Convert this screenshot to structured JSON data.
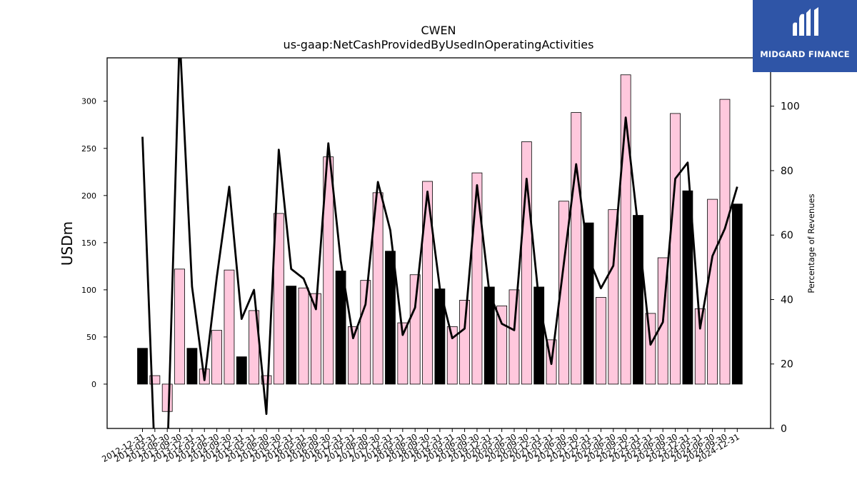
{
  "chart_data": {
    "type": "bar+line",
    "title": "CWEN",
    "subtitle": "us-gaap:NetCashProvidedByUsedInOperatingActivities",
    "ylabel": "USDm",
    "y2label": "Percentage of Revenues",
    "ylim": [
      -47,
      346
    ],
    "y2lim": [
      0,
      115
    ],
    "yticks": [
      0,
      50,
      100,
      150,
      200,
      250,
      300
    ],
    "y2ticks": [
      0,
      20,
      40,
      60,
      80,
      100
    ],
    "categories": [
      "2012-12-31",
      "2013-03-31",
      "2013-06-30",
      "2013-09-30",
      "2013-12-31",
      "2014-03-31",
      "2014-06-30",
      "2014-09-30",
      "2014-12-31",
      "2015-03-31",
      "2015-06-30",
      "2015-09-30",
      "2015-12-31",
      "2016-03-31",
      "2016-06-30",
      "2016-09-30",
      "2016-12-31",
      "2017-03-31",
      "2017-06-30",
      "2017-09-30",
      "2017-12-31",
      "2018-03-31",
      "2018-06-30",
      "2018-09-30",
      "2018-12-31",
      "2019-03-31",
      "2019-06-30",
      "2019-09-30",
      "2019-12-31",
      "2020-03-31",
      "2020-06-30",
      "2020-09-30",
      "2020-12-31",
      "2021-03-31",
      "2021-06-30",
      "2021-09-30",
      "2021-12-31",
      "2022-03-31",
      "2022-06-30",
      "2022-09-30",
      "2022-12-31",
      "2023-03-31",
      "2023-06-30",
      "2023-09-30",
      "2023-12-31",
      "2024-03-31",
      "2024-06-30",
      "2024-09-30",
      "2024-12-31"
    ],
    "series": [
      {
        "type": "bar",
        "values": [
          38,
          9,
          -29,
          122,
          38,
          16,
          57,
          121,
          29,
          78,
          9,
          181,
          104,
          102,
          96,
          241,
          120,
          61,
          110,
          203,
          141,
          65,
          116,
          215,
          101,
          61,
          89,
          224,
          103,
          83,
          100,
          257,
          103,
          47,
          194,
          288,
          171,
          92,
          185,
          328,
          179,
          75,
          134,
          287,
          205,
          80,
          196,
          302,
          191
        ],
        "annual": [
          true,
          false,
          false,
          false,
          true,
          false,
          false,
          false,
          true,
          false,
          false,
          false,
          true,
          false,
          false,
          false,
          true,
          false,
          false,
          false,
          true,
          false,
          false,
          false,
          true,
          false,
          false,
          false,
          true,
          false,
          false,
          false,
          true,
          false,
          false,
          false,
          true,
          false,
          false,
          false,
          true,
          false,
          false,
          false,
          true,
          false,
          false,
          false,
          true
        ],
        "colors": {
          "annual": "#000000",
          "quarter": "#ffc8dd",
          "edge": "#000000"
        }
      },
      {
        "type": "line",
        "axis": "right",
        "values": [
          90.5,
          -10,
          -10,
          122,
          44,
          15,
          47,
          75,
          34,
          43,
          4.5,
          86.5,
          49.5,
          46.5,
          37,
          88.5,
          52,
          28,
          38.5,
          76.5,
          61.5,
          29,
          37.5,
          73.5,
          43.5,
          28,
          31,
          75.5,
          42,
          32.5,
          30.5,
          77.5,
          39.5,
          20,
          51,
          82,
          53,
          43.5,
          50.5,
          96.5,
          62.5,
          26,
          33,
          77.5,
          82.5,
          31,
          53.5,
          62,
          75
        ],
        "color": "#000000"
      }
    ]
  },
  "logo": {
    "text": "MIDGARD FINANCE",
    "color": "#2f55a7"
  }
}
